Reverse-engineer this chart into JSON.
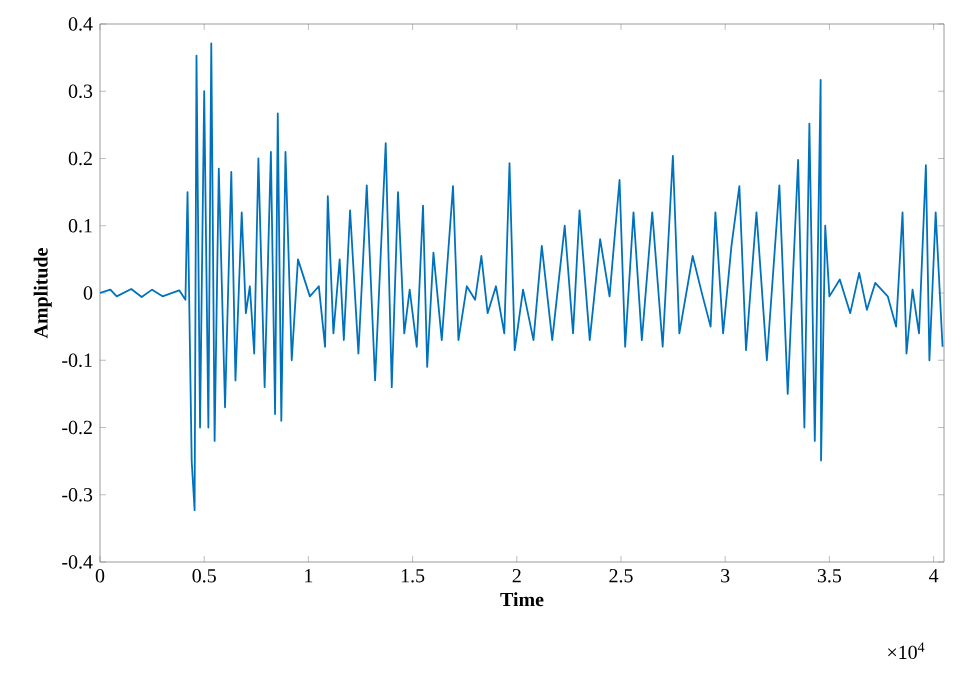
{
  "chart_data": {
    "type": "line",
    "xlabel": "Time",
    "ylabel": "Amplitude",
    "annotations": [
      "×10$^{4}$"
    ],
    "xlim": [
      0,
      4.05
    ],
    "ylim": [
      -0.4,
      0.4
    ],
    "xticks": [
      0,
      0.5,
      1,
      1.5,
      2,
      2.5,
      3,
      3.5,
      4
    ],
    "yticks": [
      -0.4,
      -0.3,
      -0.2,
      -0.1,
      0,
      0.1,
      0.2,
      0.3,
      0.4
    ],
    "series": [
      {
        "color": "#0072bd",
        "x": [
          0,
          0.05,
          0.08,
          0.15,
          0.2,
          0.25,
          0.3,
          0.38,
          0.41,
          0.42,
          0.44,
          0.454,
          0.463,
          0.48,
          0.5,
          0.52,
          0.534,
          0.55,
          0.57,
          0.6,
          0.63,
          0.65,
          0.68,
          0.7,
          0.719,
          0.74,
          0.76,
          0.79,
          0.82,
          0.84,
          0.853,
          0.87,
          0.89,
          0.92,
          0.95,
          1.007,
          1.05,
          1.08,
          1.093,
          1.12,
          1.15,
          1.17,
          1.2,
          1.24,
          1.28,
          1.32,
          1.371,
          1.4,
          1.43,
          1.46,
          1.486,
          1.52,
          1.55,
          1.57,
          1.6,
          1.64,
          1.694,
          1.72,
          1.76,
          1.8,
          1.83,
          1.86,
          1.9,
          1.94,
          1.965,
          1.99,
          2.03,
          2.08,
          2.12,
          2.17,
          2.23,
          2.27,
          2.301,
          2.35,
          2.4,
          2.445,
          2.493,
          2.52,
          2.56,
          2.6,
          2.65,
          2.7,
          2.749,
          2.78,
          2.844,
          2.892,
          2.93,
          2.953,
          2.99,
          3.03,
          3.068,
          3.1,
          3.15,
          3.2,
          3.26,
          3.3,
          3.35,
          3.38,
          3.404,
          3.43,
          3.458,
          3.46,
          3.48,
          3.5,
          3.55,
          3.6,
          3.643,
          3.68,
          3.72,
          3.78,
          3.82,
          3.851,
          3.87,
          3.899,
          3.93,
          3.963,
          3.98,
          4.01,
          4.043
        ],
        "values": [
          0,
          0.005,
          -0.005,
          0.006,
          -0.006,
          0.005,
          -0.005,
          0.004,
          -0.01,
          0.15,
          -0.25,
          -0.323,
          0.353,
          -0.2,
          0.3,
          -0.2,
          0.371,
          -0.22,
          0.185,
          -0.17,
          0.18,
          -0.13,
          0.12,
          -0.03,
          0.01,
          -0.09,
          0.2,
          -0.14,
          0.21,
          -0.18,
          0.267,
          -0.19,
          0.21,
          -0.1,
          0.05,
          -0.005,
          0.01,
          -0.08,
          0.144,
          -0.06,
          0.05,
          -0.07,
          0.123,
          -0.09,
          0.16,
          -0.13,
          0.223,
          -0.14,
          0.15,
          -0.06,
          0.005,
          -0.08,
          0.13,
          -0.11,
          0.06,
          -0.07,
          0.159,
          -0.07,
          0.01,
          -0.01,
          0.055,
          -0.03,
          0.01,
          -0.06,
          0.193,
          -0.085,
          0.005,
          -0.07,
          0.07,
          -0.07,
          0.1,
          -0.06,
          0.123,
          -0.07,
          0.08,
          -0.005,
          0.168,
          -0.08,
          0.12,
          -0.07,
          0.12,
          -0.08,
          0.204,
          -0.06,
          0.055,
          -0.005,
          -0.05,
          0.12,
          -0.06,
          0.07,
          0.159,
          -0.085,
          0.12,
          -0.1,
          0.16,
          -0.15,
          0.198,
          -0.2,
          0.252,
          -0.22,
          0.317,
          -0.249,
          0.1,
          -0.005,
          0.02,
          -0.03,
          0.03,
          -0.025,
          0.015,
          -0.005,
          -0.05,
          0.12,
          -0.09,
          0.005,
          -0.06,
          0.19,
          -0.1,
          0.12,
          -0.08
        ]
      }
    ]
  }
}
